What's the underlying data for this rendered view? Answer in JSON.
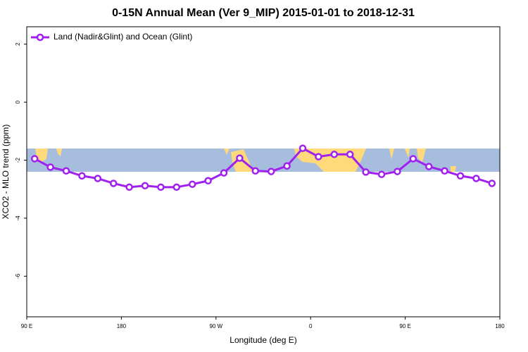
{
  "chart_data": {
    "type": "line",
    "title": "0-15N Annual Mean (Ver 9_MIP)   2015-01-01 to 2018-12-31",
    "x_label": "Longitude (deg E)",
    "y_label": "XCO2 - MLO trend (ppm)",
    "x": [
      97.5,
      112.5,
      127.5,
      142.5,
      157.5,
      172.5,
      187.5,
      202.5,
      217.5,
      232.5,
      247.5,
      262.5,
      277.5,
      292.5,
      307.5,
      322.5,
      337.5,
      352.5,
      367.5,
      382.5,
      397.5,
      412.5,
      427.5,
      442.5,
      457.5,
      472.5,
      487.5,
      502.5,
      517.5,
      532.5
    ],
    "series": [
      {
        "name": "Land (Nadir&Glint) and Ocean (Glint)",
        "color": "#a020f0",
        "values": [
          -1.95,
          -2.24,
          -2.37,
          -2.54,
          -2.63,
          -2.8,
          -2.93,
          -2.88,
          -2.93,
          -2.93,
          -2.83,
          -2.71,
          -2.44,
          -1.93,
          -2.37,
          -2.39,
          -2.2,
          -1.59,
          -1.88,
          -1.8,
          -1.8,
          -2.41,
          -2.49,
          -2.39,
          -1.95,
          -2.22,
          -2.37,
          -2.54,
          -2.63,
          -2.8
        ]
      }
    ],
    "xlim": [
      90,
      540
    ],
    "xticks": [
      {
        "value": 90,
        "label": "90 E"
      },
      180,
      {
        "value": 270,
        "label": "90 W"
      },
      {
        "value": 360,
        "label": "0"
      },
      {
        "value": 450,
        "label": "90 E"
      },
      {
        "value": 540,
        "label": "180"
      }
    ],
    "ylim": [
      -7.4,
      2.6
    ],
    "yticks": [
      -6,
      -4,
      -2,
      0,
      2
    ],
    "legend": "top-left"
  }
}
